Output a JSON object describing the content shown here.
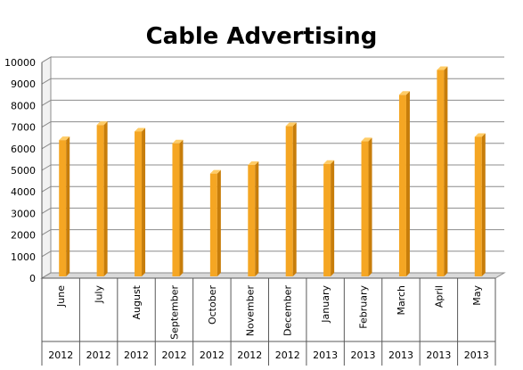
{
  "chart_data": {
    "type": "bar",
    "title": "Cable Advertising",
    "categories": [
      "June",
      "July",
      "August",
      "September",
      "October",
      "November",
      "December",
      "January",
      "February",
      "March",
      "April",
      "May"
    ],
    "years": [
      "2012",
      "2012",
      "2012",
      "2012",
      "2012",
      "2012",
      "2012",
      "2013",
      "2013",
      "2013",
      "2013",
      "2013"
    ],
    "values": [
      6400,
      7100,
      6800,
      6250,
      4850,
      5250,
      7050,
      5300,
      6350,
      8500,
      9650,
      6550
    ],
    "ylim": [
      0,
      10000
    ],
    "yticks": [
      "0",
      "1000",
      "2000",
      "3000",
      "4000",
      "5000",
      "6000",
      "7000",
      "8000",
      "9000",
      "10000"
    ],
    "grid": true,
    "colors": {
      "bar_face": "#f5a623",
      "bar_side": "#c77d0a",
      "bar_top": "#ffcc66"
    }
  }
}
